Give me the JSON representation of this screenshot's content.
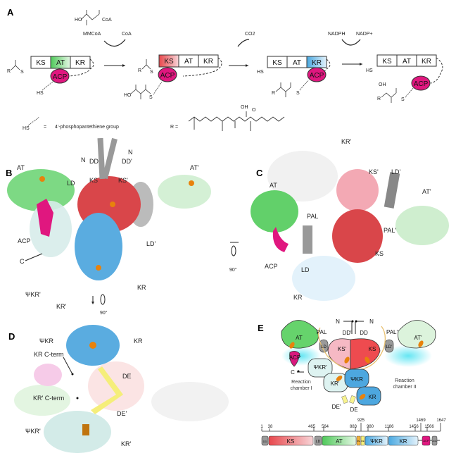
{
  "panels": {
    "a": "A",
    "b": "B",
    "c": "C",
    "d": "D",
    "e": "E"
  },
  "panel_a": {
    "domains": [
      "KS",
      "AT",
      "KR"
    ],
    "acp": "ACP",
    "mmcoa": "MMCoA",
    "coa": "CoA",
    "hooc": "HO",
    "coa_label": "CoA",
    "co2": "CO2",
    "nadph": "NADPH",
    "nadp": "NADP+",
    "hs": "HS",
    "r": "R",
    "s": "S",
    "o": "O",
    "oh": "OH",
    "ho": "HO",
    "legend_eq": "=",
    "legend_text": "4'-phosphopantethiene group",
    "r_eq": "R ="
  },
  "panel_b": {
    "labels": [
      "N",
      "N",
      "DD",
      "DD'",
      "AT",
      "LD",
      "KS",
      "KS'",
      "AT'",
      "ACP",
      "LD'",
      "C",
      "KR",
      "ΨKR'",
      "KR'"
    ],
    "rotation": "90°"
  },
  "panel_c": {
    "labels": [
      "KR'",
      "KS'",
      "LD'",
      "AT",
      "AT'",
      "PAL",
      "PAL'",
      "ACP",
      "LD",
      "KS",
      "KR"
    ],
    "rotation": "90°"
  },
  "panel_d": {
    "labels": [
      "ΨKR",
      "KR",
      "KR C-term",
      "DE",
      "KR' C-term",
      "DE'",
      "ΨKR'",
      "KR'"
    ]
  },
  "panel_e": {
    "labels": {
      "n1": "N",
      "n2": "N",
      "pal": "PAL",
      "dd2": "DD'",
      "dd": "DD",
      "pal2": "PAL'",
      "at": "AT",
      "at2": "AT'",
      "ld": "LD",
      "ld2": "LD'",
      "ks2": "KS'",
      "ks": "KS",
      "acp": "ACP",
      "c": "C",
      "psikr2": "ΨKR'",
      "kr2": "KR'",
      "psikr": "ΨKR",
      "kr": "KR",
      "de2": "DE'",
      "de": "DE",
      "chamber1a": "Reaction",
      "chamber1b": "chamber I",
      "chamber2a": "Reaction",
      "chamber2b": "chamber II"
    },
    "residues": [
      "1",
      "38",
      "465",
      "564",
      "883",
      "925",
      "980",
      "1186",
      "1456",
      "1469",
      "1566",
      "1647"
    ],
    "segments": [
      "DD",
      "KS",
      "LD",
      "AT",
      "PAL",
      "DE",
      "ΨKR",
      "KR",
      "ACP",
      "ADE"
    ]
  },
  "colors": {
    "ks": "#e8474c",
    "at": "#5fcf64",
    "kr": "#4aa8e0",
    "acp": "#e0177f",
    "ld": "#8c8c8c",
    "de": "#f5ee7a",
    "pal": "#f2b13c",
    "active": "#e8820c"
  }
}
